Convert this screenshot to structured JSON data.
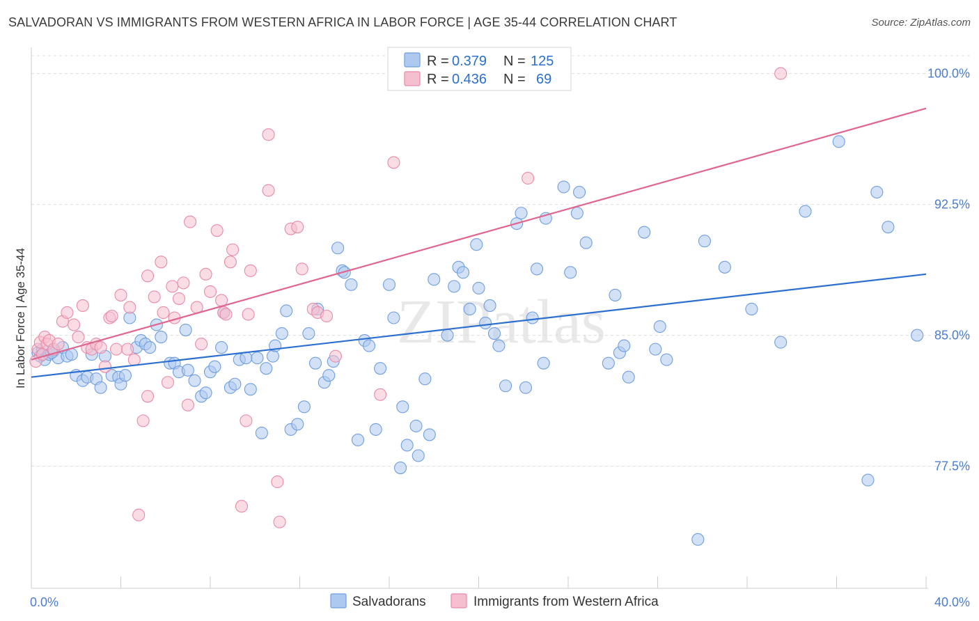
{
  "title": "SALVADORAN VS IMMIGRANTS FROM WESTERN AFRICA IN LABOR FORCE | AGE 35-44 CORRELATION CHART",
  "source": "Source: ZipAtlas.com",
  "watermark": "ZIPatlas",
  "legend_top": {
    "rows": [
      {
        "r_label": "R =",
        "r_value": "0.379",
        "n_label": "N =",
        "n_value": "125",
        "color": "#6f9ee0"
      },
      {
        "r_label": "R =",
        "r_value": "0.436",
        "n_label": "N =",
        "n_value": "69",
        "color": "#e88aa8"
      }
    ]
  },
  "colors": {
    "blue_fill": "#aec9ef",
    "blue_stroke": "#6f9ee0",
    "blue_line": "#2b6fd1",
    "pink_fill": "#f6bfd0",
    "pink_stroke": "#e88aa8",
    "pink_line": "#e0668f",
    "tick_text": "#4a7cd0",
    "grid": "#dddddd"
  },
  "chart_data": {
    "type": "scatter",
    "title": "SALVADORAN VS IMMIGRANTS FROM WESTERN AFRICA IN LABOR FORCE | AGE 35-44 CORRELATION CHART",
    "xlabel": "",
    "ylabel": "In Labor Force | Age 35-44",
    "xlim": [
      0,
      40
    ],
    "ylim": [
      70.5,
      101.5
    ],
    "x_tick_labels": [
      "0.0%",
      "40.0%"
    ],
    "y_ticks": [
      77.5,
      85.0,
      92.5,
      100.0
    ],
    "y_tick_labels": [
      "77.5%",
      "85.0%",
      "92.5%",
      "100.0%"
    ],
    "grid": true,
    "legend_position": "top-center and bottom",
    "series": [
      {
        "name": "Salvadorans",
        "color": "#6f9ee0",
        "trend": {
          "x": [
            0,
            40
          ],
          "y": [
            82.6,
            88.5
          ]
        },
        "points": [
          [
            0.3,
            84.0
          ],
          [
            0.4,
            83.8
          ],
          [
            0.5,
            84.2
          ],
          [
            0.6,
            83.6
          ],
          [
            0.8,
            83.9
          ],
          [
            1.0,
            84.1
          ],
          [
            1.2,
            83.7
          ],
          [
            1.4,
            84.3
          ],
          [
            1.6,
            83.8
          ],
          [
            2.0,
            82.7
          ],
          [
            2.3,
            82.4
          ],
          [
            2.5,
            82.6
          ],
          [
            2.7,
            83.9
          ],
          [
            2.9,
            82.5
          ],
          [
            3.1,
            82.0
          ],
          [
            3.3,
            83.8
          ],
          [
            3.6,
            82.7
          ],
          [
            3.9,
            82.6
          ],
          [
            4.0,
            82.2
          ],
          [
            4.2,
            82.7
          ],
          [
            4.4,
            86.0
          ],
          [
            4.7,
            84.3
          ],
          [
            4.9,
            84.7
          ],
          [
            5.1,
            84.5
          ],
          [
            5.3,
            84.3
          ],
          [
            5.6,
            85.6
          ],
          [
            5.8,
            84.9
          ],
          [
            6.2,
            83.4
          ],
          [
            6.4,
            83.4
          ],
          [
            6.6,
            82.9
          ],
          [
            6.9,
            85.3
          ],
          [
            7.0,
            83.0
          ],
          [
            7.3,
            82.4
          ],
          [
            7.6,
            81.5
          ],
          [
            7.8,
            81.7
          ],
          [
            8.0,
            82.9
          ],
          [
            8.2,
            83.2
          ],
          [
            8.5,
            84.3
          ],
          [
            8.6,
            86.3
          ],
          [
            8.9,
            82.0
          ],
          [
            9.1,
            82.2
          ],
          [
            9.3,
            83.6
          ],
          [
            9.6,
            83.7
          ],
          [
            9.8,
            81.9
          ],
          [
            10.1,
            83.7
          ],
          [
            10.3,
            79.4
          ],
          [
            10.5,
            83.1
          ],
          [
            10.8,
            83.8
          ],
          [
            10.9,
            84.4
          ],
          [
            11.2,
            85.1
          ],
          [
            11.4,
            86.4
          ],
          [
            11.6,
            79.6
          ],
          [
            11.9,
            79.9
          ],
          [
            12.2,
            80.9
          ],
          [
            12.4,
            85.1
          ],
          [
            12.7,
            83.4
          ],
          [
            12.8,
            86.5
          ],
          [
            13.1,
            82.3
          ],
          [
            13.3,
            82.7
          ],
          [
            13.5,
            83.5
          ],
          [
            13.7,
            90.0
          ],
          [
            13.9,
            88.7
          ],
          [
            14.0,
            88.6
          ],
          [
            14.3,
            87.9
          ],
          [
            14.6,
            79.0
          ],
          [
            14.9,
            84.7
          ],
          [
            15.1,
            84.4
          ],
          [
            15.4,
            79.6
          ],
          [
            15.6,
            83.1
          ],
          [
            16.0,
            87.9
          ],
          [
            16.2,
            86.0
          ],
          [
            16.5,
            77.4
          ],
          [
            16.6,
            80.9
          ],
          [
            16.8,
            78.7
          ],
          [
            17.2,
            79.8
          ],
          [
            17.3,
            78.1
          ],
          [
            17.6,
            82.5
          ],
          [
            17.8,
            79.3
          ],
          [
            18.0,
            88.2
          ],
          [
            18.6,
            85.0
          ],
          [
            18.9,
            87.8
          ],
          [
            19.1,
            88.9
          ],
          [
            19.3,
            88.6
          ],
          [
            19.6,
            86.5
          ],
          [
            19.9,
            90.2
          ],
          [
            20.0,
            87.7
          ],
          [
            20.3,
            85.7
          ],
          [
            20.5,
            86.7
          ],
          [
            20.7,
            85.1
          ],
          [
            20.9,
            84.4
          ],
          [
            21.2,
            82.1
          ],
          [
            21.7,
            91.4
          ],
          [
            21.9,
            92.0
          ],
          [
            22.1,
            82.0
          ],
          [
            22.4,
            86.0
          ],
          [
            22.6,
            88.8
          ],
          [
            22.9,
            83.4
          ],
          [
            23.0,
            91.7
          ],
          [
            23.8,
            93.5
          ],
          [
            24.1,
            88.6
          ],
          [
            24.4,
            92.0
          ],
          [
            24.5,
            93.2
          ],
          [
            24.8,
            90.3
          ],
          [
            25.8,
            83.4
          ],
          [
            26.1,
            87.3
          ],
          [
            26.3,
            84.0
          ],
          [
            26.5,
            84.4
          ],
          [
            26.7,
            82.6
          ],
          [
            27.4,
            90.9
          ],
          [
            27.9,
            84.2
          ],
          [
            28.1,
            85.5
          ],
          [
            28.4,
            83.6
          ],
          [
            30.1,
            90.4
          ],
          [
            31.0,
            88.9
          ],
          [
            32.2,
            86.5
          ],
          [
            33.5,
            84.6
          ],
          [
            34.6,
            92.1
          ],
          [
            36.1,
            96.1
          ],
          [
            37.4,
            76.7
          ],
          [
            37.8,
            93.2
          ],
          [
            38.3,
            91.2
          ],
          [
            39.6,
            85.0
          ],
          [
            29.8,
            73.3
          ],
          [
            0.9,
            84.0
          ],
          [
            1.8,
            83.9
          ]
        ]
      },
      {
        "name": "Immigrants from Western Africa",
        "color": "#e88aa8",
        "trend": {
          "x": [
            0,
            40
          ],
          "y": [
            83.6,
            98.0
          ]
        },
        "points": [
          [
            0.2,
            83.5
          ],
          [
            0.3,
            84.2
          ],
          [
            0.4,
            84.6
          ],
          [
            0.5,
            83.9
          ],
          [
            0.6,
            84.9
          ],
          [
            0.7,
            84.5
          ],
          [
            0.8,
            84.7
          ],
          [
            1.0,
            84.2
          ],
          [
            1.2,
            84.5
          ],
          [
            1.4,
            85.8
          ],
          [
            1.6,
            86.3
          ],
          [
            1.9,
            85.6
          ],
          [
            2.1,
            84.9
          ],
          [
            2.3,
            86.7
          ],
          [
            2.5,
            84.3
          ],
          [
            2.7,
            84.2
          ],
          [
            2.9,
            84.5
          ],
          [
            3.1,
            84.3
          ],
          [
            3.3,
            83.2
          ],
          [
            3.5,
            86.0
          ],
          [
            3.6,
            86.1
          ],
          [
            3.8,
            84.2
          ],
          [
            4.0,
            87.3
          ],
          [
            4.3,
            84.2
          ],
          [
            4.4,
            86.6
          ],
          [
            4.6,
            83.6
          ],
          [
            4.8,
            74.7
          ],
          [
            5.0,
            80.1
          ],
          [
            5.2,
            81.5
          ],
          [
            5.2,
            88.4
          ],
          [
            5.5,
            87.2
          ],
          [
            5.8,
            89.2
          ],
          [
            5.9,
            86.3
          ],
          [
            6.1,
            82.3
          ],
          [
            6.3,
            87.8
          ],
          [
            6.4,
            86.0
          ],
          [
            6.6,
            87.1
          ],
          [
            6.8,
            88.0
          ],
          [
            7.0,
            81.0
          ],
          [
            7.1,
            91.5
          ],
          [
            7.4,
            86.6
          ],
          [
            7.6,
            84.5
          ],
          [
            7.8,
            88.5
          ],
          [
            8.0,
            87.5
          ],
          [
            8.3,
            91.0
          ],
          [
            8.5,
            87.0
          ],
          [
            8.6,
            86.3
          ],
          [
            8.7,
            86.2
          ],
          [
            8.9,
            89.2
          ],
          [
            9.0,
            89.9
          ],
          [
            9.4,
            75.2
          ],
          [
            9.6,
            80.1
          ],
          [
            9.7,
            86.2
          ],
          [
            9.8,
            88.7
          ],
          [
            10.6,
            96.5
          ],
          [
            10.6,
            93.3
          ],
          [
            11.0,
            76.6
          ],
          [
            11.1,
            74.3
          ],
          [
            11.6,
            91.1
          ],
          [
            11.9,
            91.2
          ],
          [
            12.1,
            88.8
          ],
          [
            12.6,
            86.5
          ],
          [
            12.8,
            86.3
          ],
          [
            13.2,
            86.1
          ],
          [
            13.6,
            83.8
          ],
          [
            15.6,
            81.6
          ],
          [
            16.2,
            94.9
          ],
          [
            22.2,
            94.0
          ],
          [
            33.5,
            100.0
          ]
        ]
      }
    ]
  },
  "legend_bottom": {
    "items": [
      {
        "label": "Salvadorans",
        "color": "#6f9ee0"
      },
      {
        "label": "Immigrants from Western Africa",
        "color": "#e88aa8"
      }
    ]
  }
}
